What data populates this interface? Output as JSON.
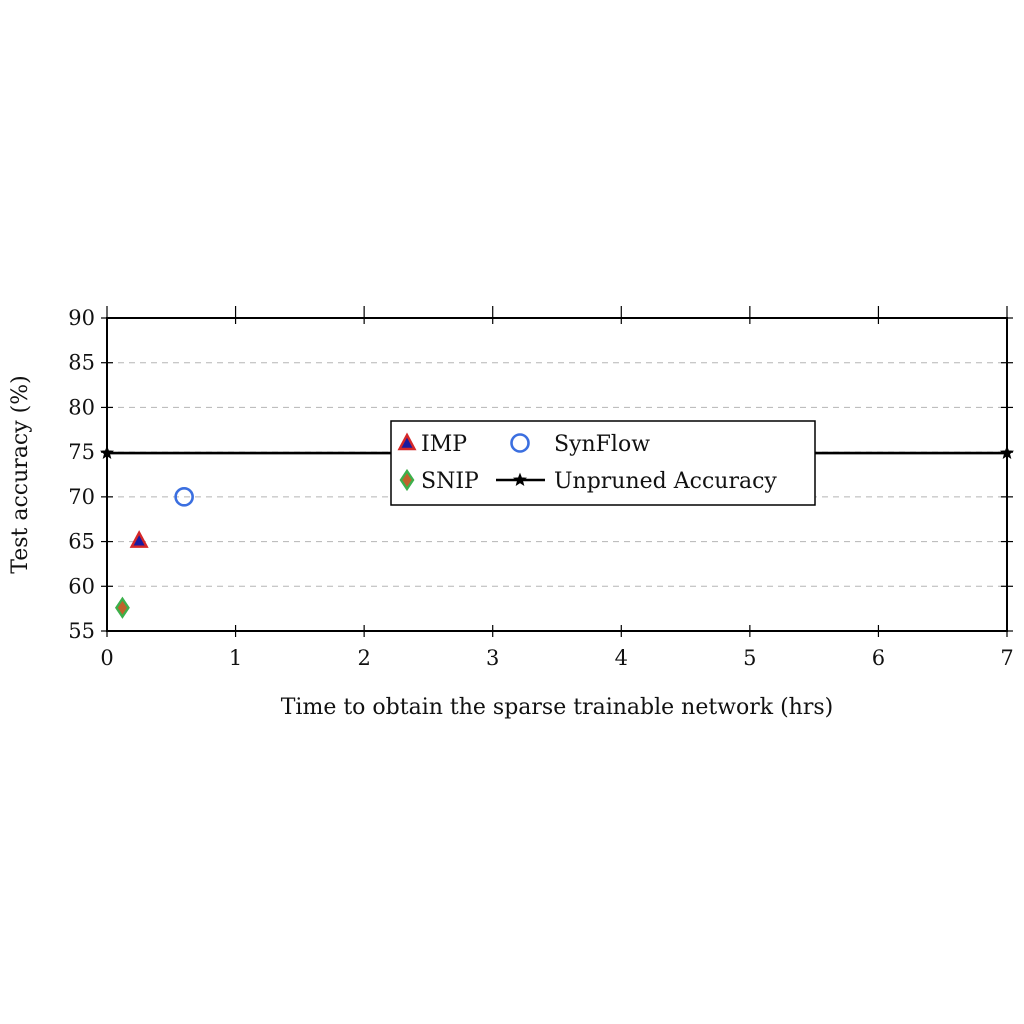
{
  "chart_data": {
    "type": "scatter",
    "xlabel": "Time to obtain the sparse trainable network (hrs)",
    "ylabel": "Test accuracy (%)",
    "xlim": [
      0,
      7
    ],
    "ylim": [
      55,
      90
    ],
    "xticks": [
      0,
      1,
      2,
      3,
      4,
      5,
      6,
      7
    ],
    "yticks": [
      55,
      60,
      65,
      70,
      75,
      80,
      85,
      90
    ],
    "grid": "horizontal-dashed",
    "legend_position": "center",
    "series": [
      {
        "name": "IMP",
        "marker": "triangle",
        "fill": "#1a1aa0",
        "stroke": "#d62728",
        "points": [
          [
            0.25,
            65.1
          ]
        ]
      },
      {
        "name": "SynFlow",
        "marker": "circle",
        "fill": "none",
        "stroke": "#3b6fe0",
        "points": [
          [
            0.6,
            70.0
          ]
        ]
      },
      {
        "name": "SNIP",
        "marker": "diamond",
        "fill": "#c0612b",
        "stroke": "#3cb04b",
        "points": [
          [
            0.12,
            57.6
          ]
        ]
      },
      {
        "name": "Unpruned Accuracy",
        "marker": "star",
        "line": true,
        "fill": "#000000",
        "stroke": "#000000",
        "points": [
          [
            0,
            74.9
          ],
          [
            7,
            74.9
          ]
        ]
      }
    ]
  }
}
